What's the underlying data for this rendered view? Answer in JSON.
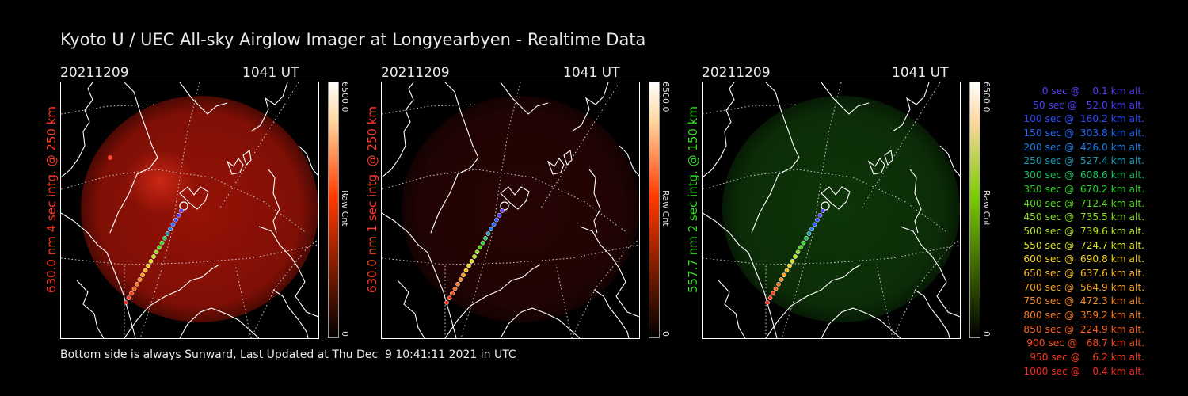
{
  "title": "Kyoto U / UEC All-sky Airglow Imager at Longyearbyen - Realtime Data",
  "footer": "Bottom side is always Sunward, Last Updated at Thu Dec  9 10:41:11 2021 in UTC",
  "panels": [
    {
      "date": "20211209",
      "time": "1041 UT",
      "label": "630.0 nm 4 sec intg. @ 250 km",
      "cbar_max": "6500.0",
      "cbar_min": "0",
      "cbar_unit": "Raw Cnt",
      "label_color": "#ff3a28",
      "glow": "#b01508",
      "glow_opacity": 0.85,
      "cbar_color": "#ff3a00"
    },
    {
      "date": "20211209",
      "time": "1041 UT",
      "label": "630.0 nm 1 sec intg. @ 250 km",
      "cbar_max": "6500.0",
      "cbar_min": "0",
      "cbar_unit": "Raw Cnt",
      "label_color": "#ff3a28",
      "glow": "#2a0504",
      "glow_opacity": 0.9,
      "cbar_color": "#ff3a00"
    },
    {
      "date": "20211209",
      "time": "1041 UT",
      "label": "557.7 nm 2 sec intg. @ 150 km",
      "cbar_max": "6500.0",
      "cbar_min": "0",
      "cbar_unit": "Raw Cnt",
      "label_color": "#33dd22",
      "glow": "#0f3a0a",
      "glow_opacity": 0.9,
      "cbar_color": "#7acc00"
    }
  ],
  "legend": [
    {
      "text": "0 sec @    0.1 km alt.",
      "color": "#5a3cff"
    },
    {
      "text": "50 sec @   52.0 km alt.",
      "color": "#4a3cff"
    },
    {
      "text": "100 sec @  160.2 km alt.",
      "color": "#2e4cff"
    },
    {
      "text": "150 sec @  303.8 km alt.",
      "color": "#1e64ff"
    },
    {
      "text": "200 sec @  426.0 km alt.",
      "color": "#1a80e8"
    },
    {
      "text": "250 sec @  527.4 km alt.",
      "color": "#1a9ab8"
    },
    {
      "text": "300 sec @  608.6 km alt.",
      "color": "#19c060"
    },
    {
      "text": "350 sec @  670.2 km alt.",
      "color": "#2ad22a"
    },
    {
      "text": "400 sec @  712.4 km alt.",
      "color": "#5ad81e"
    },
    {
      "text": "450 sec @  735.5 km alt.",
      "color": "#86de1e"
    },
    {
      "text": "500 sec @  739.6 km alt.",
      "color": "#b4e41e"
    },
    {
      "text": "550 sec @  724.7 km alt.",
      "color": "#dce21e"
    },
    {
      "text": "600 sec @  690.8 km alt.",
      "color": "#f2d21e"
    },
    {
      "text": "650 sec @  637.6 km alt.",
      "color": "#f6b81e"
    },
    {
      "text": "700 sec @  564.9 km alt.",
      "color": "#f6a01e"
    },
    {
      "text": "750 sec @  472.3 km alt.",
      "color": "#f68a1e"
    },
    {
      "text": "800 sec @  359.2 km alt.",
      "color": "#f6761e"
    },
    {
      "text": "850 sec @  224.9 km alt.",
      "color": "#f6601e"
    },
    {
      "text": "900 sec @   68.7 km alt.",
      "color": "#f64a1e"
    },
    {
      "text": "950 sec @    6.2 km alt.",
      "color": "#f63a1e"
    },
    {
      "text": "1000 sec @    0.4 km alt.",
      "color": "#f62a1e"
    }
  ]
}
